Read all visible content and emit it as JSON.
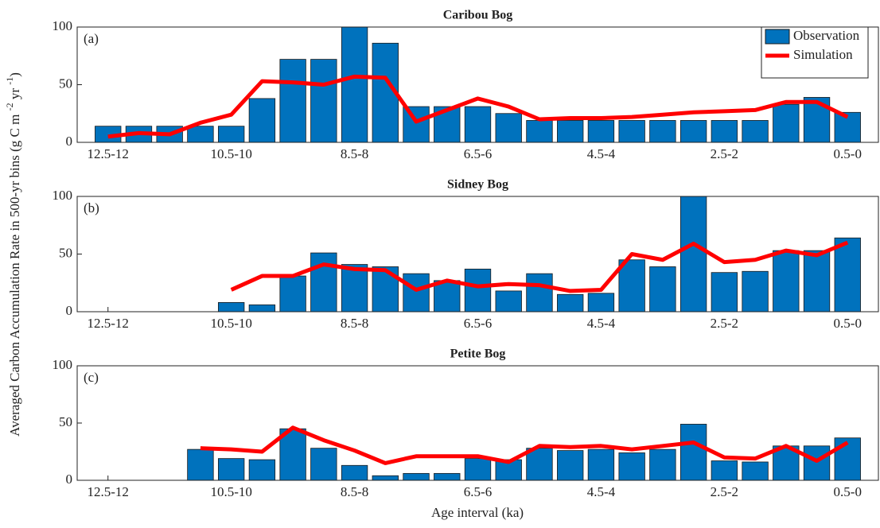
{
  "y_label": [
    "Averaged Carbon Accumulation Rate in 500-yr bins (g C m ",
    "-2",
    " yr ",
    "-1",
    ")"
  ],
  "x_label": "Age interval (ka)",
  "chart_data": [
    {
      "type": "bar",
      "title": "Caribou Bog",
      "panel_label": "(a)",
      "categories": [
        "12.5-12",
        null,
        null,
        null,
        "10.5-10",
        null,
        null,
        null,
        "8.5-8",
        null,
        null,
        null,
        "6.5-6",
        null,
        null,
        null,
        "4.5-4",
        null,
        null,
        null,
        "2.5-2",
        null,
        null,
        null,
        "0.5-0"
      ],
      "ylim": [
        0,
        100
      ],
      "yticks": [
        0,
        50,
        100
      ],
      "legend": "upper right",
      "series": [
        {
          "name": "Observation",
          "color": "#0072bd",
          "type": "bar",
          "values": [
            14,
            14,
            14,
            14,
            14,
            38,
            72,
            72,
            100,
            86,
            31,
            31,
            31,
            25,
            19,
            19,
            19,
            19,
            19,
            19,
            19,
            19,
            33,
            39,
            26
          ]
        },
        {
          "name": "Simulation",
          "color": "#ff0000",
          "type": "line",
          "values": [
            5,
            8,
            7,
            17,
            24,
            53,
            52,
            50,
            57,
            56,
            18,
            28,
            38,
            31,
            20,
            21,
            21,
            22,
            24,
            26,
            27,
            28,
            35,
            35,
            22
          ]
        }
      ]
    },
    {
      "type": "bar",
      "title": "Sidney Bog",
      "panel_label": "(b)",
      "categories": [
        "12.5-12",
        null,
        null,
        null,
        "10.5-10",
        null,
        null,
        null,
        "8.5-8",
        null,
        null,
        null,
        "6.5-6",
        null,
        null,
        null,
        "4.5-4",
        null,
        null,
        null,
        "2.5-2",
        null,
        null,
        null,
        "0.5-0"
      ],
      "ylim": [
        0,
        100
      ],
      "yticks": [
        0,
        50,
        100
      ],
      "series": [
        {
          "color": "#0072bd",
          "type": "bar",
          "values": [
            null,
            null,
            null,
            null,
            8,
            6,
            31,
            51,
            41,
            39,
            33,
            27,
            37,
            18,
            33,
            15,
            16,
            45,
            39,
            100,
            34,
            35,
            53,
            53,
            64
          ]
        },
        {
          "color": "#ff0000",
          "type": "line",
          "values": [
            null,
            null,
            null,
            null,
            19,
            31,
            31,
            41,
            37,
            36,
            19,
            27,
            22,
            24,
            23,
            18,
            19,
            50,
            45,
            59,
            43,
            45,
            53,
            49,
            60
          ]
        }
      ]
    },
    {
      "type": "bar",
      "title": "Petite Bog",
      "panel_label": "(c)",
      "categories": [
        "12.5-12",
        null,
        null,
        null,
        "10.5-10",
        null,
        null,
        null,
        "8.5-8",
        null,
        null,
        null,
        "6.5-6",
        null,
        null,
        null,
        "4.5-4",
        null,
        null,
        null,
        "2.5-2",
        null,
        null,
        null,
        "0.5-0"
      ],
      "ylim": [
        0,
        100
      ],
      "yticks": [
        0,
        50,
        100
      ],
      "series": [
        {
          "color": "#0072bd",
          "type": "bar",
          "values": [
            null,
            null,
            null,
            27,
            19,
            18,
            45,
            28,
            13,
            4,
            6,
            6,
            19,
            18,
            28,
            26,
            27,
            24,
            27,
            49,
            17,
            16,
            30,
            30,
            37
          ]
        },
        {
          "color": "#ff0000",
          "type": "line",
          "values": [
            null,
            null,
            null,
            28,
            27,
            25,
            46,
            35,
            26,
            15,
            21,
            21,
            21,
            16,
            30,
            29,
            30,
            27,
            30,
            33,
            20,
            19,
            30,
            17,
            33
          ]
        }
      ]
    }
  ]
}
